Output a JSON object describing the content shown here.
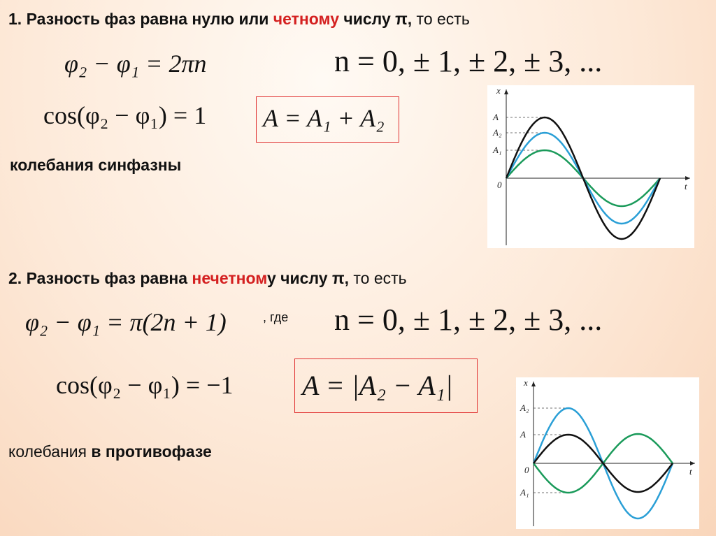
{
  "section1": {
    "heading": {
      "number": "1.",
      "before": "Разность фаз равна нулю или ",
      "highlight": "четному",
      "after": " числу π,",
      "tail": " то есть"
    },
    "phase_formula": "φ₂ − φ₁ = 2πn",
    "n_values": "n = 0, ± 1, ± 2, ± 3, ...",
    "cos_formula": "cos(φ₂ − φ₁) = 1",
    "amplitude_formula": "A = A₁ + A₂",
    "conclusion": "колебания синфазны",
    "graph": {
      "axis_x": "x",
      "axis_t": "t",
      "label_a": "A",
      "label_a2": "A₂",
      "label_a1": "A₁",
      "origin": "0"
    }
  },
  "section2": {
    "heading": {
      "number": "2.",
      "before": "Разность фаз равна ",
      "highlight": "нечетном",
      "after": "у числу π,",
      "tail": " то есть"
    },
    "phase_formula": "φ₂ − φ₁ = π(2n + 1)",
    "where": ", где",
    "n_values": "n = 0, ± 1, ± 2, ± 3, ...",
    "cos_formula": "cos(φ₂ − φ₁) = −1",
    "amplitude_formula": "A = |A₂ − A₁|",
    "conclusion": {
      "plain": "колебания ",
      "bold": "в противофазе"
    },
    "graph": {
      "axis_x": "x",
      "axis_t": "t",
      "label_a2": "A₂",
      "label_a": "A",
      "origin": "0",
      "label_a1": "A₁"
    }
  }
}
